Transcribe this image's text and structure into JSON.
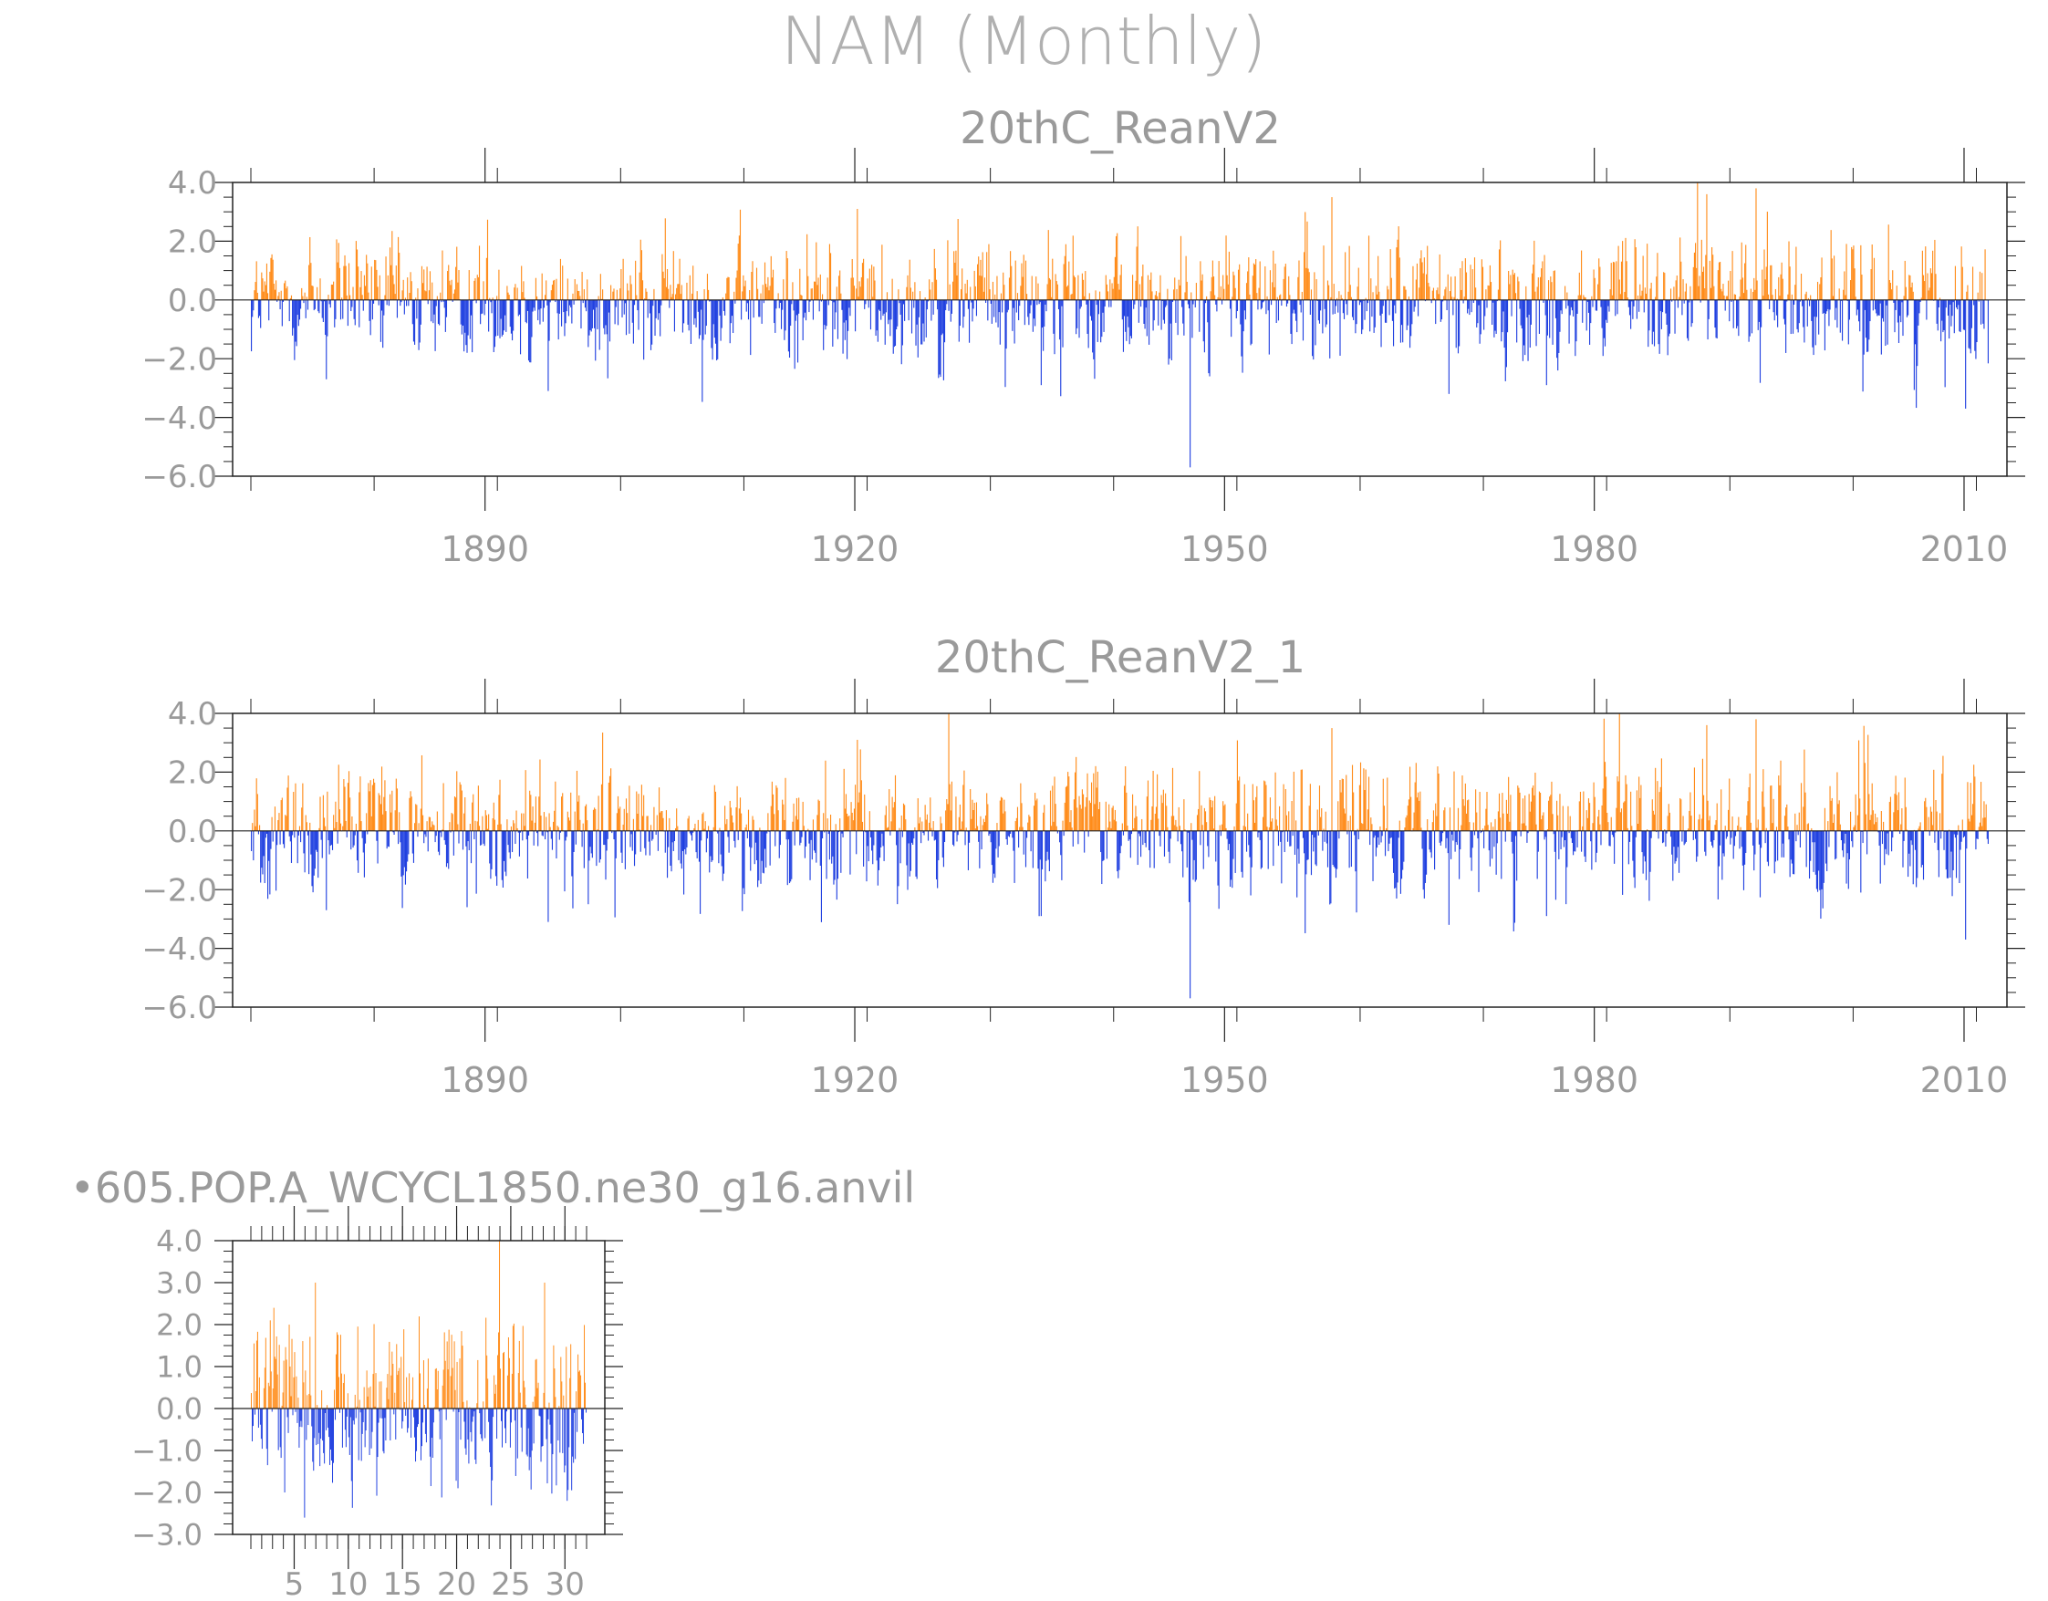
{
  "title": "NAM (Monthly)",
  "colors": {
    "positive": "#ff8c1a",
    "negative": "#2040e0",
    "axis": "#222222",
    "text": "#9a9a9a"
  },
  "chart_data": [
    {
      "type": "bar",
      "title": "20thC_ReanV2",
      "x_start": 1871,
      "x_end": 2012,
      "xticks": [
        "1890",
        "1920",
        "1950",
        "1980",
        "2010"
      ],
      "ylim": [
        -6.0,
        4.0
      ],
      "yticks": [
        "4.0",
        "2.0",
        "0.0",
        "−2.0",
        "−4.0",
        "−6.0"
      ],
      "peaks": [
        {
          "x": 1958.7,
          "y": 3.5
        },
        {
          "x": 1989.1,
          "y": 3.6
        },
        {
          "x": 1993.1,
          "y": 3.8
        },
        {
          "x": 1920.2,
          "y": 3.1
        },
        {
          "x": 1947.2,
          "y": -5.7
        },
        {
          "x": 2010.1,
          "y": -3.7
        },
        {
          "x": 1935.1,
          "y": -2.9
        },
        {
          "x": 1895.1,
          "y": -3.1
        },
        {
          "x": 1968.2,
          "y": -3.2
        },
        {
          "x": 1976.1,
          "y": -2.9
        },
        {
          "x": 1877.1,
          "y": -2.7
        }
      ]
    },
    {
      "type": "bar",
      "title": "20thC_ReanV2_1",
      "x_start": 1871,
      "x_end": 2012,
      "xticks": [
        "1890",
        "1920",
        "1950",
        "1980",
        "2010"
      ],
      "ylim": [
        -6.0,
        4.0
      ],
      "yticks": [
        "4.0",
        "2.0",
        "0.0",
        "−2.0",
        "−4.0",
        "−6.0"
      ],
      "peaks": [
        {
          "x": 1958.7,
          "y": 3.5
        },
        {
          "x": 1989.1,
          "y": 3.6
        },
        {
          "x": 1993.1,
          "y": 3.8
        },
        {
          "x": 1920.2,
          "y": 3.1
        },
        {
          "x": 1947.2,
          "y": -5.7
        },
        {
          "x": 2010.1,
          "y": -3.7
        },
        {
          "x": 1935.1,
          "y": -2.9
        },
        {
          "x": 1895.1,
          "y": -3.1
        },
        {
          "x": 1968.2,
          "y": -3.2
        },
        {
          "x": 1976.1,
          "y": -2.9
        },
        {
          "x": 1877.1,
          "y": -2.7
        }
      ]
    },
    {
      "type": "bar",
      "title": "•605.POP.A_WCYCL1850.ne30_g16.anvil",
      "x_start": 1,
      "x_end": 32,
      "xticks": [
        "5",
        "10",
        "15",
        "20",
        "25",
        "30"
      ],
      "ylim": [
        -3.0,
        4.0
      ],
      "yticks": [
        "4.0",
        "3.0",
        "2.0",
        "1.0",
        "0.0",
        "−1.0",
        "−2.0",
        "−3.0"
      ],
      "peaks": [
        {
          "x": 3.1,
          "y": 2.4
        },
        {
          "x": 6.9,
          "y": 3.0
        },
        {
          "x": 28.1,
          "y": 3.0
        },
        {
          "x": 5.9,
          "y": -2.6
        },
        {
          "x": 4.1,
          "y": -2.0
        },
        {
          "x": 20.1,
          "y": -1.9
        },
        {
          "x": 30.2,
          "y": -2.2
        }
      ]
    }
  ]
}
